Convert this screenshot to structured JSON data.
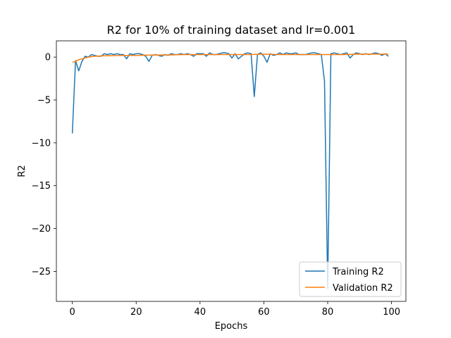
{
  "chart_data": {
    "type": "line",
    "title": "R2 for 10% of training dataset and lr=0.001",
    "xlabel": "Epochs",
    "ylabel": "R2",
    "xlim": [
      -5,
      104.5
    ],
    "ylim": [
      -28.5,
      1.9
    ],
    "xticks": [
      0,
      20,
      40,
      60,
      80,
      100
    ],
    "yticks": [
      0,
      -5,
      -10,
      -15,
      -20,
      -25
    ],
    "ytick_labels": [
      "0",
      "−5",
      "−10",
      "−15",
      "−20",
      "−25"
    ],
    "grid": false,
    "legend_position": "lower right",
    "series": [
      {
        "name": "Training R2",
        "color": "#1f77b4",
        "x": [
          0,
          1,
          2,
          3,
          4,
          5,
          6,
          7,
          8,
          9,
          10,
          11,
          12,
          13,
          14,
          15,
          16,
          17,
          18,
          19,
          20,
          21,
          22,
          23,
          24,
          25,
          26,
          27,
          28,
          29,
          30,
          31,
          32,
          33,
          34,
          35,
          36,
          37,
          38,
          39,
          40,
          41,
          42,
          43,
          44,
          45,
          46,
          47,
          48,
          49,
          50,
          51,
          52,
          53,
          54,
          55,
          56,
          57,
          58,
          59,
          60,
          61,
          62,
          63,
          64,
          65,
          66,
          67,
          68,
          69,
          70,
          71,
          72,
          73,
          74,
          75,
          76,
          77,
          78,
          79,
          80,
          81,
          82,
          83,
          84,
          85,
          86,
          87,
          88,
          89,
          90,
          91,
          92,
          93,
          94,
          95,
          96,
          97,
          98,
          99
        ],
        "values": [
          -8.9,
          -0.4,
          -1.6,
          -0.5,
          0.1,
          0.0,
          0.3,
          0.2,
          0.1,
          0.1,
          0.4,
          0.3,
          0.4,
          0.3,
          0.4,
          0.3,
          0.3,
          -0.2,
          0.4,
          0.3,
          0.4,
          0.4,
          0.3,
          0.1,
          -0.5,
          0.2,
          0.3,
          0.2,
          0.1,
          0.3,
          0.2,
          0.4,
          0.3,
          0.3,
          0.4,
          0.3,
          0.4,
          0.3,
          0.1,
          0.4,
          0.4,
          0.4,
          0.1,
          0.5,
          0.3,
          0.3,
          0.4,
          0.5,
          0.5,
          0.4,
          -0.1,
          0.4,
          -0.2,
          0.1,
          0.4,
          0.5,
          0.4,
          -4.6,
          0.3,
          0.5,
          0.1,
          -0.6,
          0.4,
          0.2,
          0.3,
          0.5,
          0.3,
          0.5,
          0.4,
          0.4,
          0.5,
          0.3,
          0.3,
          0.3,
          0.4,
          0.5,
          0.5,
          0.4,
          0.3,
          -2.8,
          -27.0,
          0.4,
          0.5,
          0.4,
          0.3,
          0.4,
          0.5,
          -0.1,
          0.3,
          0.5,
          0.4,
          0.3,
          0.4,
          0.3,
          0.4,
          0.5,
          0.4,
          0.2,
          0.4,
          0.1
        ]
      },
      {
        "name": "Validation R2",
        "color": "#ff7f0e",
        "x": [
          0,
          1,
          2,
          3,
          4,
          5,
          6,
          7,
          8,
          9,
          10,
          15,
          20,
          25,
          30,
          35,
          40,
          45,
          50,
          55,
          60,
          65,
          70,
          75,
          80,
          85,
          90,
          95,
          99
        ],
        "values": [
          -0.6,
          -0.5,
          -0.3,
          -0.2,
          -0.1,
          0.0,
          0.05,
          0.1,
          0.1,
          0.15,
          0.15,
          0.2,
          0.2,
          0.25,
          0.25,
          0.3,
          0.3,
          0.3,
          0.3,
          0.3,
          0.35,
          0.3,
          0.3,
          0.3,
          0.3,
          0.3,
          0.35,
          0.35,
          0.35
        ]
      }
    ]
  }
}
